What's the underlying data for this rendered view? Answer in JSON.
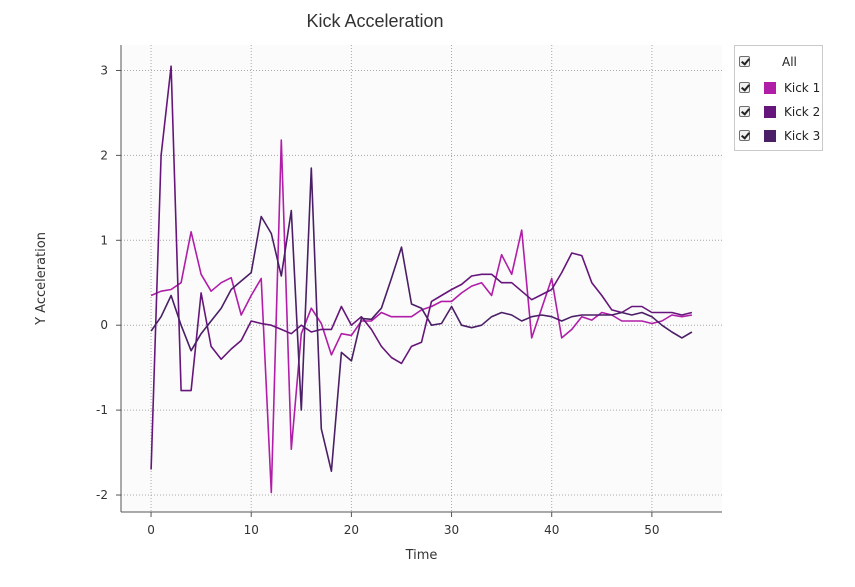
{
  "chart_data": {
    "type": "line",
    "title": "Kick Acceleration",
    "xlabel": "Time",
    "ylabel": "Y Acceleration",
    "xlim": [
      -3,
      57
    ],
    "ylim": [
      -2.2,
      3.3
    ],
    "x_ticks": [
      0,
      10,
      20,
      30,
      40,
      50
    ],
    "y_ticks": [
      -2,
      -1,
      0,
      1,
      2,
      3
    ],
    "grid": true,
    "legend_position": "right",
    "legend_all_label": "All",
    "x": [
      0,
      1,
      2,
      3,
      4,
      5,
      6,
      7,
      8,
      9,
      10,
      11,
      12,
      13,
      14,
      15,
      16,
      17,
      18,
      19,
      20,
      21,
      22,
      23,
      24,
      25,
      26,
      27,
      28,
      29,
      30,
      31,
      32,
      33,
      34,
      35,
      36,
      37,
      38,
      39,
      40,
      41,
      42,
      43,
      44,
      45,
      46,
      47,
      48,
      49,
      50,
      51,
      52,
      53,
      54
    ],
    "series": [
      {
        "name": "Kick 1",
        "color": "#b01ea8",
        "values": [
          0.35,
          0.4,
          0.42,
          0.5,
          1.1,
          0.6,
          0.4,
          0.5,
          0.56,
          0.12,
          0.35,
          0.55,
          -1.97,
          2.18,
          -1.46,
          -0.1,
          0.2,
          0.02,
          -0.35,
          -0.1,
          -0.12,
          0.05,
          0.05,
          0.15,
          0.1,
          0.1,
          0.1,
          0.18,
          0.22,
          0.28,
          0.28,
          0.38,
          0.46,
          0.5,
          0.35,
          0.83,
          0.6,
          1.12,
          -0.15,
          0.2,
          0.55,
          -0.15,
          -0.05,
          0.1,
          0.06,
          0.15,
          0.12,
          0.05,
          0.05,
          0.05,
          0.02,
          0.05,
          0.12,
          0.1,
          0.12
        ]
      },
      {
        "name": "Kick 2",
        "color": "#66167a",
        "values": [
          -1.7,
          2.0,
          3.05,
          -0.77,
          -0.77,
          0.38,
          -0.25,
          -0.4,
          -0.28,
          -0.18,
          0.05,
          0.02,
          0.0,
          -0.05,
          -0.1,
          0.0,
          -0.08,
          -0.05,
          -0.05,
          0.22,
          0.0,
          0.1,
          -0.05,
          -0.25,
          -0.38,
          -0.45,
          -0.25,
          -0.2,
          0.28,
          0.35,
          0.42,
          0.48,
          0.58,
          0.6,
          0.6,
          0.5,
          0.5,
          0.4,
          0.3,
          0.36,
          0.42,
          0.62,
          0.85,
          0.82,
          0.5,
          0.35,
          0.18,
          0.15,
          0.22,
          0.22,
          0.15,
          0.15,
          0.15,
          0.12,
          0.15
        ]
      },
      {
        "name": "Kick 3",
        "color": "#4a1f66",
        "values": [
          -0.07,
          0.1,
          0.35,
          0.0,
          -0.3,
          -0.1,
          0.05,
          0.2,
          0.42,
          0.52,
          0.62,
          1.28,
          1.08,
          0.58,
          1.35,
          -1.0,
          1.85,
          -1.22,
          -1.72,
          -0.32,
          -0.42,
          0.08,
          0.07,
          0.2,
          0.55,
          0.92,
          0.25,
          0.2,
          0.0,
          0.02,
          0.22,
          0.0,
          -0.03,
          0.0,
          0.1,
          0.15,
          0.12,
          0.05,
          0.1,
          0.12,
          0.1,
          0.05,
          0.1,
          0.12,
          0.12,
          0.12,
          0.12,
          0.15,
          0.12,
          0.15,
          0.1,
          0.0,
          -0.08,
          -0.15,
          -0.08
        ]
      }
    ]
  }
}
